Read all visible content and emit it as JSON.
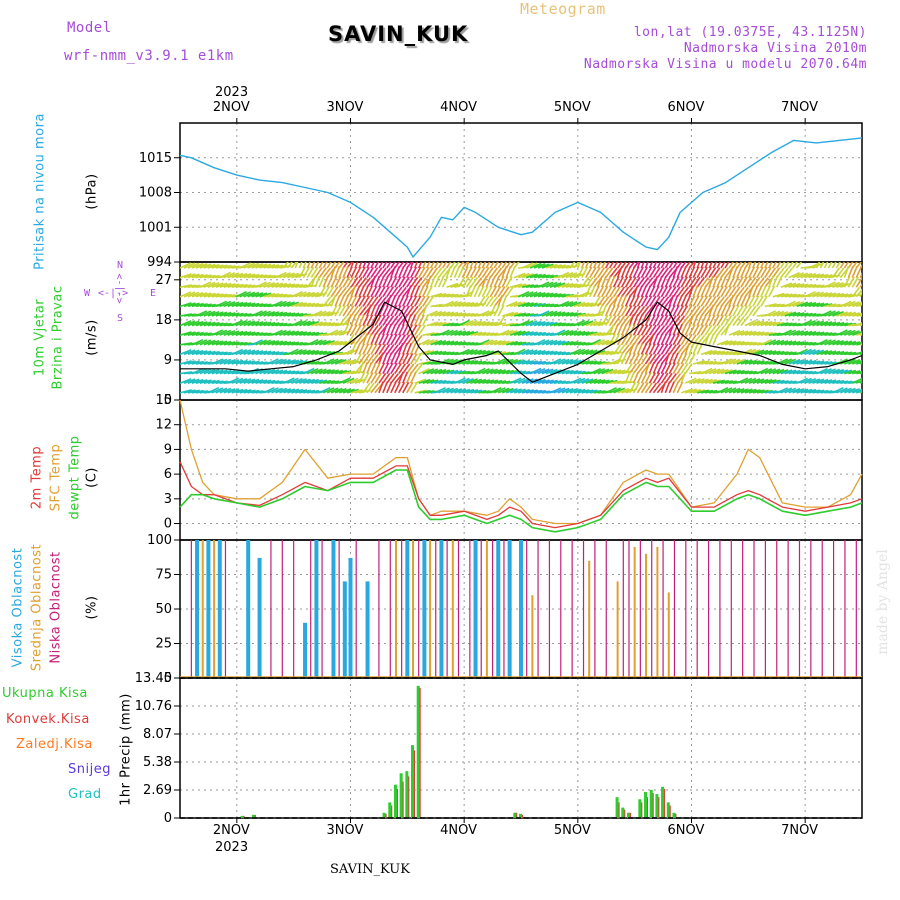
{
  "header": {
    "model_label": "Model",
    "model_name": "wrf-nmm_v3.9.1 e1km",
    "site": "SAVIN_KUK",
    "app_title": "Meteogram",
    "lonlat": "lon,lat (19.0375E, 43.1125N)",
    "elevation": "Nadmorska Visina 2010m",
    "model_elevation": "Nadmorska Visina u modelu 2070.64m",
    "year": "2023",
    "footer_site": "SAVIN_KUK",
    "credit": "made by Angel"
  },
  "colors": {
    "model": "#a64cd9",
    "meteogram": "#e8c27a",
    "pressure": "#2aa9e0",
    "wind_a": "#2ecc2e",
    "wind_b": "#2aa9e0",
    "temp2m": "#e03a3a",
    "sfc": "#e0a030",
    "dew": "#2ecc2e",
    "high_cloud": "#2aa9e0",
    "mid_cloud": "#e0a030",
    "low_cloud": "#c2207a",
    "total_precip": "#2ecc2e",
    "conv_precip": "#e03a3a",
    "freeze_precip": "#ff7a20",
    "snow": "#5a3ad9",
    "hail": "#20c0c0"
  },
  "days": [
    "2NOV",
    "3NOV",
    "4NOV",
    "5NOV",
    "6NOV",
    "7NOV"
  ],
  "panels": {
    "pressure": {
      "label": "Pritisak na nivou mora",
      "unit": "(hPa)"
    },
    "wind": {
      "label_a": "10m Vjetar",
      "label_b": "Brzina i Pravac",
      "unit": "(m/s)",
      "compass_n": "N",
      "compass_s": "S",
      "compass_w": "W",
      "compass_e": "E",
      "compass_arrow_h": "<-|->",
      "compass_arrow_v": "<-|->"
    },
    "temperature": {
      "label_a": "2m Temp",
      "label_b": "SFC Temp",
      "label_c": "dewpt Temp",
      "unit": "(C)"
    },
    "clouds": {
      "label_a": "Visoka Oblacnost",
      "label_b": "Srednja Oblacnost",
      "label_c": "Niska Oblacnost",
      "unit": "(%)"
    },
    "precip": {
      "unit": "1hr Precip (mm)"
    }
  },
  "legend": {
    "total": "Ukupna Kisa",
    "conv": "Konvek.Kisa",
    "freeze": "Zaledj.Kisa",
    "snow": "Snijeg",
    "hail": "Grad"
  },
  "chart_data": [
    {
      "type": "line",
      "panel": "pressure",
      "ylim": [
        994,
        1022
      ],
      "yticks": [
        "994",
        "1001",
        "1008",
        "1015"
      ],
      "x_days": [
        1.5,
        1.6,
        1.8,
        2.0,
        2.2,
        2.4,
        2.6,
        2.8,
        3.0,
        3.2,
        3.4,
        3.5,
        3.55,
        3.7,
        3.8,
        3.9,
        4.0,
        4.1,
        4.3,
        4.5,
        4.6,
        4.8,
        5.0,
        5.2,
        5.4,
        5.6,
        5.7,
        5.8,
        5.9,
        6.1,
        6.3,
        6.5,
        6.7,
        6.9,
        7.1,
        7.3,
        7.5
      ],
      "series": [
        {
          "name": "",
          "values": [
            1015.5,
            1015,
            1013,
            1011.5,
            1010.5,
            1010,
            1009,
            1008,
            1006,
            1003,
            999,
            997,
            995,
            999,
            1003,
            1002.5,
            1005,
            1004,
            1001,
            999.5,
            1000,
            1004,
            1006,
            1004,
            1000,
            997,
            996.5,
            999,
            1004,
            1008,
            1010,
            1013,
            1016,
            1018.5,
            1018,
            1018.5,
            1019
          ]
        }
      ]
    },
    {
      "type": "line",
      "panel": "wind",
      "ylim": [
        0,
        31
      ],
      "yticks": [
        "0",
        "9",
        "18",
        "27"
      ],
      "x_days": [
        1.5,
        1.7,
        1.9,
        2.1,
        2.3,
        2.5,
        2.7,
        2.9,
        3.0,
        3.2,
        3.3,
        3.45,
        3.6,
        3.7,
        3.9,
        4.0,
        4.2,
        4.3,
        4.5,
        4.6,
        4.8,
        5.0,
        5.2,
        5.4,
        5.6,
        5.7,
        5.8,
        5.9,
        6.0,
        6.2,
        6.4,
        6.6,
        6.8,
        7.0,
        7.2,
        7.4,
        7.5
      ],
      "series": [
        {
          "name": "",
          "values": [
            7,
            7,
            7,
            6.5,
            7,
            7.5,
            9,
            11,
            13,
            17,
            22,
            20,
            12,
            9,
            8,
            9,
            10,
            11,
            6,
            4,
            6,
            8,
            11,
            14,
            18,
            22,
            20,
            15,
            13,
            12,
            11,
            10,
            8,
            7,
            7.5,
            9,
            10
          ]
        }
      ]
    },
    {
      "type": "line",
      "panel": "temperature",
      "ylim": [
        -2,
        15
      ],
      "yticks": [
        "0",
        "3",
        "6",
        "9",
        "12",
        "15"
      ],
      "x_days": [
        1.5,
        1.6,
        1.7,
        1.8,
        2.0,
        2.2,
        2.4,
        2.6,
        2.8,
        3.0,
        3.2,
        3.4,
        3.5,
        3.6,
        3.7,
        3.8,
        4.0,
        4.2,
        4.3,
        4.4,
        4.5,
        4.6,
        4.8,
        5.0,
        5.2,
        5.4,
        5.6,
        5.7,
        5.8,
        6.0,
        6.2,
        6.4,
        6.5,
        6.6,
        6.8,
        7.0,
        7.2,
        7.4,
        7.5
      ],
      "series": [
        {
          "name": "",
          "values": [
            7.5,
            4.5,
            3.5,
            3.5,
            2.5,
            2.2,
            3.5,
            5,
            4,
            5.5,
            5.5,
            7,
            7,
            3,
            1,
            1,
            1.5,
            0.5,
            1,
            2,
            1.5,
            0,
            -0.5,
            0,
            1,
            4,
            5.5,
            5,
            5.5,
            2,
            2,
            3.5,
            4,
            3.5,
            2,
            1.5,
            2,
            2.5,
            3
          ]
        },
        {
          "name": "",
          "values": [
            15,
            9,
            5,
            3.5,
            3,
            3,
            5,
            9,
            5.5,
            6,
            6,
            8,
            8,
            3,
            1,
            1.5,
            1.5,
            1,
            1.5,
            3,
            2,
            0.5,
            0,
            0,
            1,
            5,
            6.5,
            6,
            6,
            2,
            2.5,
            6,
            9,
            8,
            2.5,
            2,
            2,
            3.5,
            6
          ]
        },
        {
          "name": "",
          "values": [
            2,
            3.5,
            3.5,
            3,
            2.5,
            2,
            3,
            4.5,
            4,
            5,
            5,
            6.5,
            6.5,
            2,
            0.5,
            0.5,
            1,
            0,
            0.5,
            1,
            0.5,
            -0.5,
            -1,
            -0.5,
            0.5,
            3.5,
            5,
            4.5,
            4.5,
            1.5,
            1.5,
            3,
            3.5,
            3,
            1.5,
            1,
            1.5,
            2,
            2.5
          ]
        }
      ]
    },
    {
      "type": "bar",
      "panel": "clouds",
      "ylim": [
        0,
        100
      ],
      "yticks": [
        "0",
        "25",
        "50",
        "75",
        "100"
      ],
      "series": [
        {
          "name": "",
          "x_days": [
            1.65,
            1.75,
            1.85,
            2.1,
            2.2,
            2.6,
            2.7,
            2.85,
            2.95,
            3.0,
            3.15,
            3.5,
            3.65,
            3.8,
            4.1,
            4.3,
            4.4,
            4.5
          ],
          "values": [
            100,
            100,
            100,
            100,
            87,
            40,
            100,
            100,
            70,
            87,
            70,
            100,
            100,
            100,
            100,
            100,
            100,
            100
          ]
        },
        {
          "name": "",
          "x_days": [
            1.7,
            1.8,
            3.4,
            3.55,
            3.7,
            3.9,
            4.2,
            4.6,
            5.1,
            5.35,
            5.5,
            5.6,
            5.7,
            5.8
          ],
          "values": [
            100,
            100,
            100,
            100,
            100,
            100,
            100,
            60,
            85,
            70,
            95,
            90,
            95,
            62
          ]
        },
        {
          "name": "",
          "x_days": [
            1.6,
            1.9,
            2.3,
            2.4,
            2.5,
            2.65,
            2.75,
            2.9,
            3.05,
            3.25,
            3.35,
            3.45,
            3.6,
            3.75,
            3.85,
            3.95,
            4.05,
            4.15,
            4.25,
            4.35,
            4.55,
            4.65,
            4.75,
            4.85,
            4.95,
            5.05,
            5.15,
            5.25,
            5.4,
            5.45,
            5.55,
            5.65,
            5.75,
            5.85,
            5.95,
            6.05,
            6.15,
            6.25,
            6.35,
            6.45,
            6.55,
            6.65,
            6.75,
            6.85,
            6.95,
            7.05,
            7.15,
            7.25,
            7.35,
            7.45
          ],
          "values": [
            100,
            100,
            100,
            100,
            100,
            100,
            100,
            100,
            100,
            100,
            100,
            100,
            100,
            100,
            100,
            100,
            100,
            100,
            100,
            100,
            100,
            100,
            100,
            100,
            100,
            100,
            100,
            100,
            100,
            100,
            100,
            100,
            100,
            100,
            100,
            100,
            100,
            100,
            100,
            100,
            100,
            100,
            100,
            100,
            100,
            100,
            100,
            100,
            100,
            100
          ]
        }
      ]
    },
    {
      "type": "bar",
      "panel": "precip",
      "ylim": [
        0,
        13.45
      ],
      "yticks": [
        "0",
        "2.69",
        "5.38",
        "8.07",
        "10.76",
        "13.45"
      ],
      "x_days": [
        2.05,
        2.15,
        3.3,
        3.35,
        3.4,
        3.45,
        3.5,
        3.55,
        3.6,
        4.45,
        4.5,
        5.35,
        5.4,
        5.45,
        5.55,
        5.6,
        5.65,
        5.7,
        5.75,
        5.8,
        5.85
      ],
      "series": [
        {
          "name": "",
          "values": [
            0.2,
            0.3,
            0.5,
            1.5,
            3.2,
            4.3,
            4.5,
            7,
            12.7,
            0.5,
            0.4,
            2,
            1,
            0.5,
            1.8,
            2.5,
            2.7,
            2.3,
            3,
            1.5,
            0.5
          ]
        },
        {
          "name": "",
          "values": [
            0.2,
            0.3,
            0.4,
            1.2,
            2.8,
            3.5,
            4,
            6.5,
            12.5,
            0.5,
            0.3,
            1.5,
            0.8,
            0.5,
            1.5,
            2,
            2.4,
            2,
            2.8,
            1.2,
            0.4
          ]
        }
      ]
    }
  ]
}
